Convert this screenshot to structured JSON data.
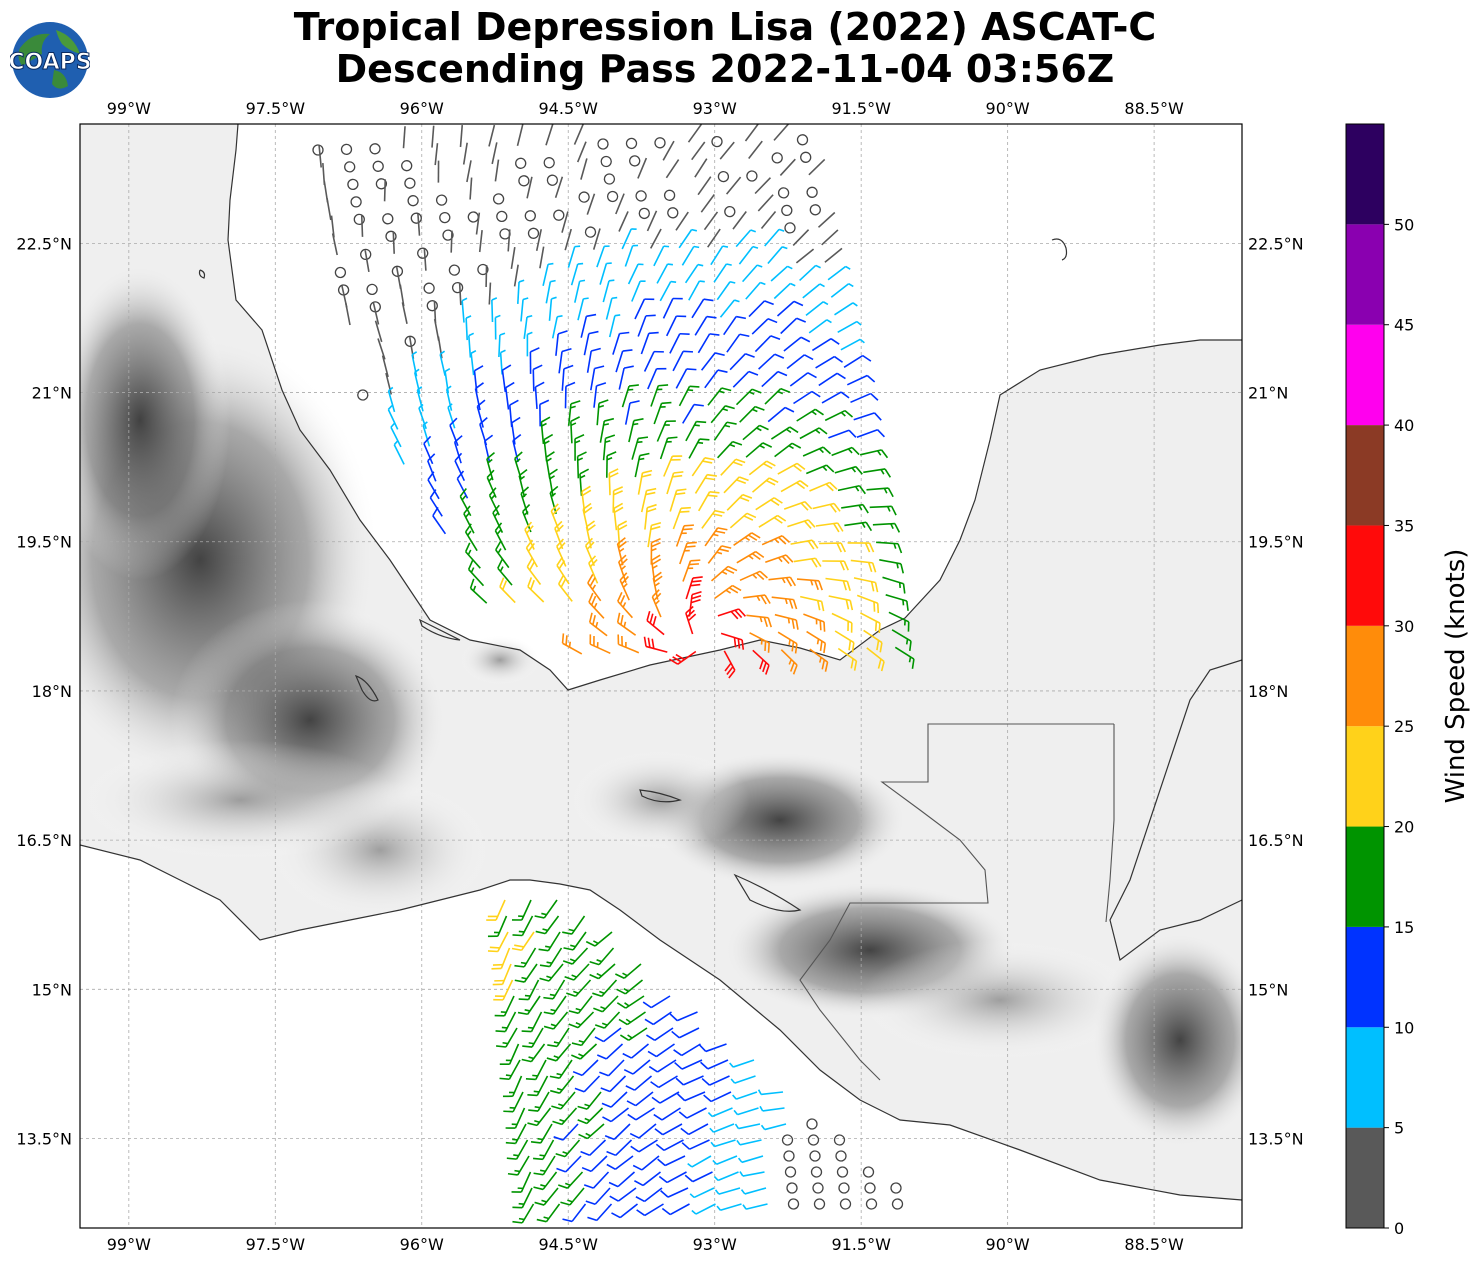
{
  "header": {
    "title_line1": "Tropical Depression Lisa (2022) ASCAT-C",
    "title_line2": "Descending Pass 2022-11-04 03:56Z",
    "logo_text": "COAPS"
  },
  "map": {
    "lon_range": [
      -99.5,
      -87.6
    ],
    "lat_range": [
      12.6,
      23.7
    ],
    "lon_ticks": [
      {
        "value": -99,
        "label": "99°W"
      },
      {
        "value": -97.5,
        "label": "97.5°W"
      },
      {
        "value": -96,
        "label": "96°W"
      },
      {
        "value": -94.5,
        "label": "94.5°W"
      },
      {
        "value": -93,
        "label": "93°W"
      },
      {
        "value": -91.5,
        "label": "91.5°W"
      },
      {
        "value": -90,
        "label": "90°W"
      },
      {
        "value": -88.5,
        "label": "88.5°W"
      }
    ],
    "lat_ticks": [
      {
        "value": 22.5,
        "label": "22.5°N"
      },
      {
        "value": 21,
        "label": "21°N"
      },
      {
        "value": 19.5,
        "label": "19.5°N"
      },
      {
        "value": 18,
        "label": "18°N"
      },
      {
        "value": 16.5,
        "label": "16.5°N"
      },
      {
        "value": 15,
        "label": "15°N"
      },
      {
        "value": 13.5,
        "label": "13.5°N"
      }
    ],
    "grid": true,
    "background": "grayscale terrain",
    "colors": {
      "land_dark": "#4a4a4a",
      "coastline": "#333333",
      "grid": "#aaaaaa"
    }
  },
  "colorbar": {
    "title": "Wind Speed (knots)",
    "bins": [
      {
        "min": 0,
        "max": 5,
        "color": "#595959"
      },
      {
        "min": 5,
        "max": 10,
        "color": "#00bfff"
      },
      {
        "min": 10,
        "max": 15,
        "color": "#0033ff"
      },
      {
        "min": 15,
        "max": 20,
        "color": "#009400"
      },
      {
        "min": 20,
        "max": 25,
        "color": "#ffd21a"
      },
      {
        "min": 25,
        "max": 30,
        "color": "#ff8c0a"
      },
      {
        "min": 30,
        "max": 35,
        "color": "#ff0a0a"
      },
      {
        "min": 35,
        "max": 40,
        "color": "#8b3a25"
      },
      {
        "min": 40,
        "max": 45,
        "color": "#ff00ee"
      },
      {
        "min": 45,
        "max": 50,
        "color": "#8a00b0"
      },
      {
        "min": 50,
        "max": 55,
        "color": "#2d0060"
      }
    ],
    "tick_labels": [
      "0",
      "5",
      "10",
      "15",
      "20",
      "25",
      "30",
      "35",
      "40",
      "45",
      "50"
    ]
  }
}
